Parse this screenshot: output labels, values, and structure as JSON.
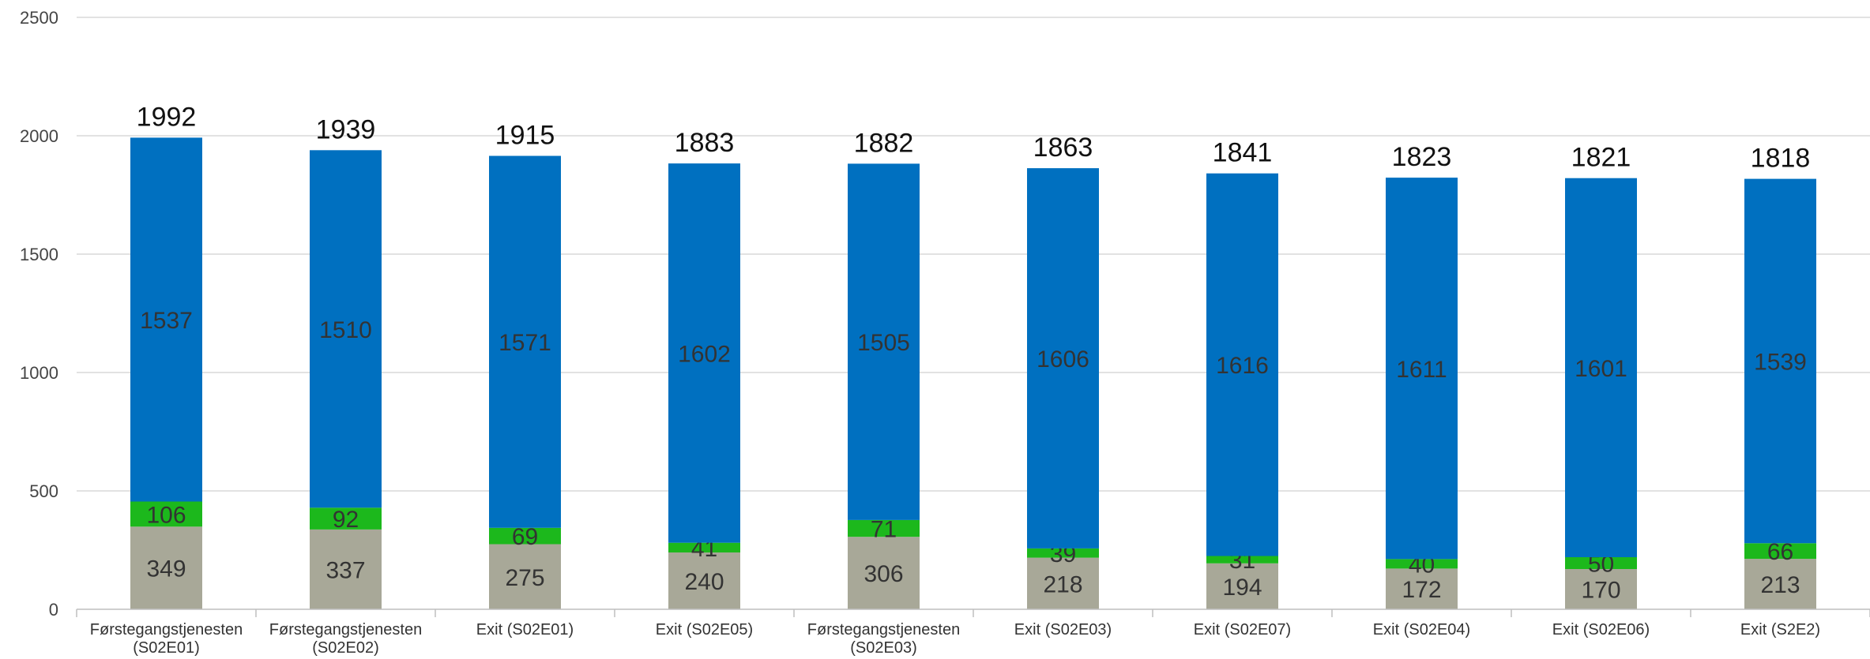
{
  "chart_data": {
    "type": "bar",
    "stacked": true,
    "title": "",
    "xlabel": "",
    "ylabel": "",
    "ylim": [
      0,
      2500
    ],
    "yticks": [
      0,
      500,
      1000,
      1500,
      2000,
      2500
    ],
    "grid": true,
    "categories": [
      [
        "Førstegangstjenesten",
        "(S02E01)"
      ],
      [
        "Førstegangstjenesten",
        "(S02E02)"
      ],
      [
        "Exit (S02E01)"
      ],
      [
        "Exit (S02E05)"
      ],
      [
        "Førstegangstjenesten",
        "(S02E03)"
      ],
      [
        "Exit (S02E03)"
      ],
      [
        "Exit (S02E07)"
      ],
      [
        "Exit (S02E04)"
      ],
      [
        "Exit (S02E06)"
      ],
      [
        "Exit (S2E2)"
      ]
    ],
    "series": [
      {
        "color": "#a8a898",
        "values": [
          349,
          337,
          275,
          240,
          306,
          218,
          194,
          172,
          170,
          213
        ]
      },
      {
        "color": "#1cb81c",
        "values": [
          106,
          92,
          69,
          41,
          71,
          39,
          31,
          40,
          50,
          66
        ]
      },
      {
        "color": "#0070c0",
        "values": [
          1537,
          1510,
          1571,
          1602,
          1505,
          1606,
          1616,
          1611,
          1601,
          1539
        ]
      }
    ],
    "totals": [
      1992,
      1939,
      1915,
      1883,
      1882,
      1863,
      1841,
      1823,
      1821,
      1818
    ]
  }
}
